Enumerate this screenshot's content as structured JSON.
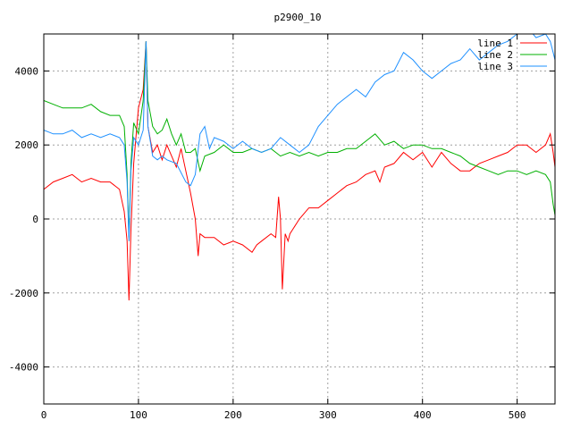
{
  "chart_data": {
    "type": "line",
    "title": "p2900_10",
    "xlabel": "",
    "ylabel": "",
    "xlim": [
      0,
      540
    ],
    "ylim": [
      -5000,
      5000
    ],
    "xticks": [
      0,
      100,
      200,
      300,
      400,
      500
    ],
    "yticks": [
      -4000,
      -2000,
      0,
      2000,
      4000
    ],
    "grid": true,
    "legend_position": "top-right",
    "series": [
      {
        "name": "line 1",
        "color": "#ff0000",
        "x": [
          0,
          10,
          20,
          30,
          40,
          50,
          60,
          70,
          80,
          85,
          88,
          90,
          92,
          95,
          100,
          105,
          108,
          110,
          115,
          120,
          125,
          130,
          135,
          140,
          145,
          150,
          155,
          160,
          163,
          165,
          170,
          180,
          190,
          200,
          210,
          220,
          225,
          230,
          240,
          245,
          248,
          250,
          252,
          255,
          258,
          260,
          265,
          270,
          280,
          290,
          300,
          310,
          320,
          330,
          340,
          350,
          355,
          360,
          370,
          380,
          390,
          400,
          410,
          420,
          430,
          440,
          450,
          460,
          470,
          480,
          490,
          500,
          510,
          520,
          530,
          535,
          538,
          540
        ],
        "y": [
          800,
          1000,
          1100,
          1200,
          1000,
          1100,
          1000,
          1000,
          800,
          200,
          -600,
          -2200,
          -300,
          1500,
          3000,
          3500,
          4800,
          2500,
          1800,
          2000,
          1600,
          2000,
          1700,
          1400,
          1900,
          1300,
          700,
          0,
          -1000,
          -400,
          -500,
          -500,
          -700,
          -600,
          -700,
          -900,
          -700,
          -600,
          -400,
          -500,
          600,
          0,
          -1900,
          -400,
          -600,
          -400,
          -200,
          0,
          300,
          300,
          500,
          700,
          900,
          1000,
          1200,
          1300,
          1000,
          1400,
          1500,
          1800,
          1600,
          1800,
          1400,
          1800,
          1500,
          1300,
          1300,
          1500,
          1600,
          1700,
          1800,
          2000,
          2000,
          1800,
          2000,
          2300,
          1800,
          1400
        ]
      },
      {
        "name": "line 2",
        "color": "#00b000",
        "x": [
          0,
          10,
          20,
          30,
          40,
          50,
          60,
          70,
          80,
          85,
          88,
          90,
          92,
          95,
          100,
          105,
          108,
          110,
          115,
          120,
          125,
          130,
          135,
          140,
          145,
          150,
          155,
          160,
          165,
          170,
          180,
          190,
          200,
          210,
          220,
          230,
          240,
          250,
          260,
          270,
          280,
          290,
          300,
          310,
          320,
          330,
          340,
          350,
          360,
          370,
          380,
          390,
          400,
          410,
          420,
          430,
          440,
          450,
          460,
          470,
          480,
          490,
          500,
          510,
          520,
          530,
          535,
          538,
          540
        ],
        "y": [
          3200,
          3100,
          3000,
          3000,
          3000,
          3100,
          2900,
          2800,
          2800,
          2500,
          1200,
          -500,
          1500,
          2600,
          2300,
          3200,
          4800,
          3200,
          2500,
          2300,
          2400,
          2700,
          2300,
          2000,
          2300,
          1800,
          1800,
          1900,
          1300,
          1700,
          1800,
          2000,
          1800,
          1800,
          1900,
          1800,
          1900,
          1700,
          1800,
          1700,
          1800,
          1700,
          1800,
          1800,
          1900,
          1900,
          2100,
          2300,
          2000,
          2100,
          1900,
          2000,
          2000,
          1900,
          1900,
          1800,
          1700,
          1500,
          1400,
          1300,
          1200,
          1300,
          1300,
          1200,
          1300,
          1200,
          1000,
          400,
          100
        ]
      },
      {
        "name": "line 3",
        "color": "#1e90ff",
        "x": [
          0,
          10,
          20,
          30,
          40,
          50,
          60,
          70,
          80,
          85,
          88,
          90,
          92,
          95,
          100,
          105,
          108,
          110,
          115,
          120,
          125,
          130,
          140,
          150,
          155,
          160,
          165,
          170,
          175,
          180,
          190,
          200,
          210,
          220,
          230,
          240,
          250,
          260,
          270,
          280,
          290,
          300,
          310,
          320,
          330,
          340,
          350,
          360,
          370,
          380,
          390,
          400,
          410,
          420,
          430,
          440,
          450,
          460,
          470,
          480,
          490,
          500,
          510,
          520,
          530,
          535,
          538,
          540
        ],
        "y": [
          2400,
          2300,
          2300,
          2400,
          2200,
          2300,
          2200,
          2300,
          2200,
          2000,
          1000,
          -600,
          1300,
          2200,
          2000,
          2400,
          4800,
          2500,
          1700,
          1600,
          1700,
          1600,
          1500,
          1000,
          900,
          1200,
          2300,
          2500,
          1900,
          2200,
          2100,
          1900,
          2100,
          1900,
          1800,
          1900,
          2200,
          2000,
          1800,
          2000,
          2500,
          2800,
          3100,
          3300,
          3500,
          3300,
          3700,
          3900,
          4000,
          4500,
          4300,
          4000,
          3800,
          4000,
          4200,
          4300,
          4600,
          4300,
          4500,
          4700,
          4800,
          5000,
          5200,
          4900,
          5000,
          4800,
          4500,
          4300
        ]
      }
    ]
  }
}
